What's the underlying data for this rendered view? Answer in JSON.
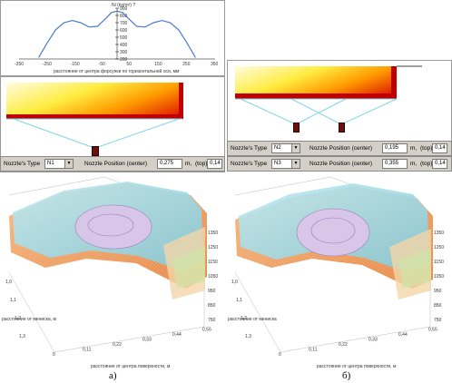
{
  "top_chart": {
    "ylabel": "Ni (kg/m²) ?",
    "xlabel": "расстояние от центра форсунки по горизонтальной оси, мм",
    "x_ticks": [
      "-350",
      "-250",
      "-150",
      "-50",
      "50",
      "150",
      "250",
      "350"
    ],
    "y_ticks": [
      "900",
      "800",
      "700",
      "600",
      "500",
      "400",
      "300",
      "200"
    ],
    "chart_data": {
      "type": "line",
      "x": [
        -280,
        -250,
        -220,
        -190,
        -160,
        -130,
        -100,
        -70,
        -40,
        -20,
        0,
        20,
        40,
        70,
        100,
        130,
        160,
        190,
        220,
        250,
        280
      ],
      "values": [
        220,
        420,
        600,
        700,
        730,
        700,
        640,
        650,
        760,
        840,
        860,
        840,
        760,
        650,
        640,
        700,
        730,
        700,
        600,
        420,
        220
      ],
      "xlim": [
        -350,
        350
      ],
      "ylim": [
        200,
        900
      ]
    }
  },
  "left_panel": {
    "nozzle_rows": [
      {
        "type_label": "Nozzle's Type",
        "type_value": "N1",
        "pos_label": "Nozzle Position (center)",
        "center": "0,275",
        "unit1": "m,",
        "top_label": "(top)",
        "top": "0,14",
        "unit2": "m"
      }
    ]
  },
  "right_panel": {
    "nozzle_rows": [
      {
        "type_label": "Nozzle's Type",
        "type_value": "N2",
        "pos_label": "Nozzle Position (center)",
        "center": "0,195",
        "unit1": "m,",
        "top_label": "(top)",
        "top": "0,14",
        "unit2": "m"
      },
      {
        "type_label": "Nozzle's Type",
        "type_value": "N3",
        "pos_label": "Nozzle Position (center)",
        "center": "0,355",
        "unit1": "m,",
        "top_label": "(top)",
        "top": "0,14",
        "unit2": "m"
      }
    ]
  },
  "plot_left": {
    "z_ticks": [
      "1350",
      "1250",
      "1150",
      "1050",
      "950",
      "850",
      "750"
    ],
    "y_ticks": [
      "1,0",
      "1,1",
      "1,2",
      "1,3"
    ],
    "x_ticks": [
      "0",
      "0,11",
      "0,22",
      "0,33",
      "0,44",
      "0,55"
    ],
    "ylabel": "расстояние от мениска, м",
    "xlabel": "расстояние от центра поверхности, м",
    "caption": "а)"
  },
  "plot_right": {
    "z_ticks": [
      "1350",
      "1250",
      "1150",
      "1050",
      "950",
      "850",
      "750"
    ],
    "y_ticks": [
      "1,0",
      "1,1",
      "1,2",
      "1,3"
    ],
    "x_ticks": [
      "0",
      "0,11",
      "0,22",
      "0,33",
      "0,44",
      "0,55"
    ],
    "ylabel": "расстояние от мениска",
    "xlabel": "расстояние от центра поверхности, м",
    "caption": "б)"
  }
}
